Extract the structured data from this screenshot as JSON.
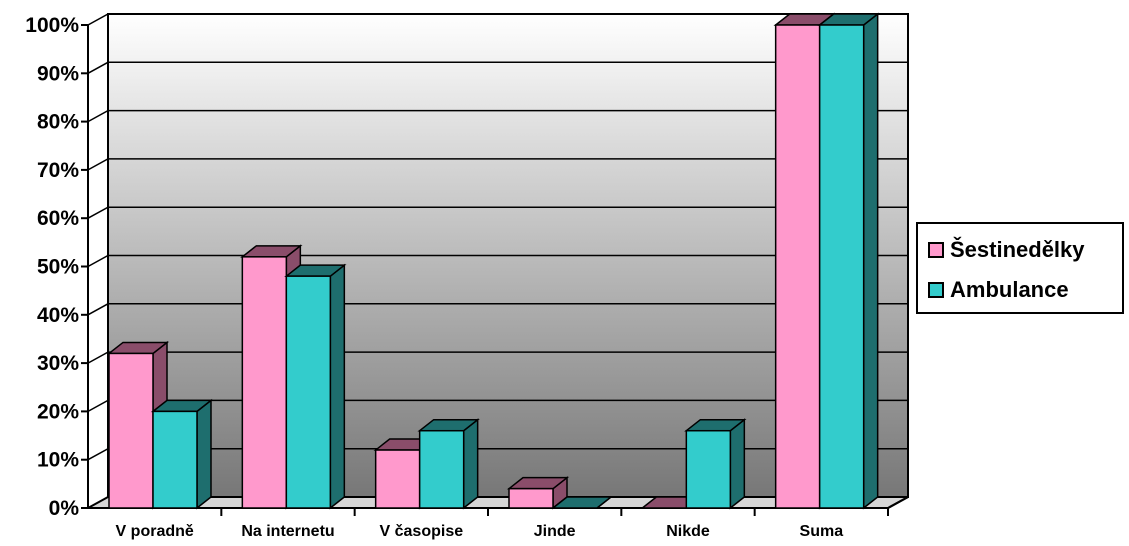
{
  "chart_data": {
    "type": "bar",
    "categories": [
      "V poradně",
      "Na internetu",
      "V časopise",
      "Jinde",
      "Nikde",
      "Suma"
    ],
    "series": [
      {
        "name": "Šestinedělky",
        "values": [
          32,
          52,
          12,
          4,
          0,
          100
        ],
        "color": "#ff99cc",
        "side": "#8a4d6a"
      },
      {
        "name": "Ambulance",
        "values": [
          20,
          48,
          16,
          0,
          16,
          100
        ],
        "color": "#33cccc",
        "side": "#1e6e6e"
      }
    ],
    "yticks": [
      "0%",
      "10%",
      "20%",
      "30%",
      "40%",
      "50%",
      "60%",
      "70%",
      "80%",
      "90%",
      "100%"
    ],
    "ylim": [
      0,
      100
    ],
    "grid": true,
    "legend_position": "right"
  }
}
